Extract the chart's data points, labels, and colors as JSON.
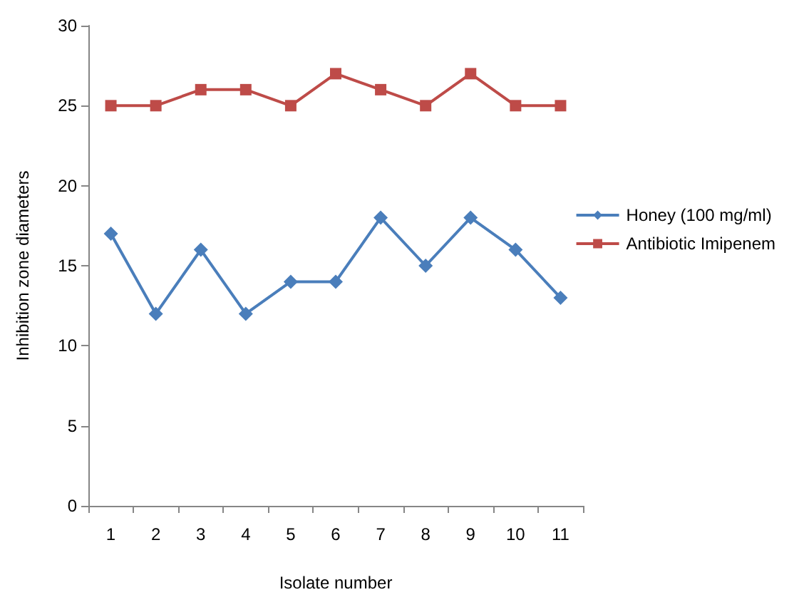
{
  "chart_data": {
    "type": "line",
    "xlabel": "Isolate number",
    "ylabel": "Inhibition zone diameters",
    "categories": [
      "1",
      "2",
      "3",
      "4",
      "5",
      "6",
      "7",
      "8",
      "9",
      "10",
      "11"
    ],
    "series": [
      {
        "name": "Honey (100 mg/ml)",
        "color": "#4a7ebb",
        "marker": "diamond",
        "values": [
          17,
          12,
          16,
          12,
          14,
          14,
          18,
          15,
          18,
          16,
          13
        ]
      },
      {
        "name": "Antibiotic Imipenem",
        "color": "#be4b48",
        "marker": "square",
        "values": [
          25,
          25,
          26,
          26,
          25,
          27,
          26,
          25,
          27,
          25,
          25
        ]
      }
    ],
    "ylim": [
      0,
      30
    ],
    "yticks": [
      0,
      5,
      10,
      15,
      20,
      25,
      30
    ],
    "grid": false,
    "legend": "right"
  }
}
